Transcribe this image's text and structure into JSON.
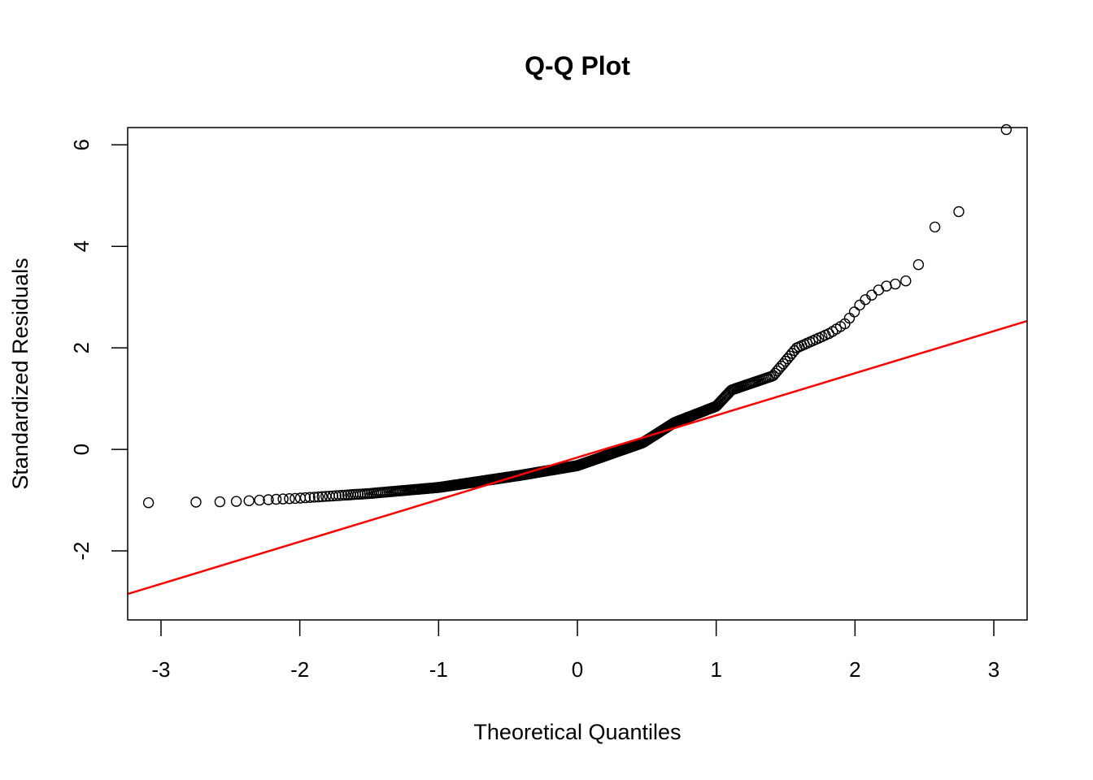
{
  "chart_data": {
    "type": "scatter",
    "title": "Q-Q Plot",
    "xlabel": "Theoretical Quantiles",
    "ylabel": "Standardized Residuals",
    "xlim": [
      -3.24,
      3.24
    ],
    "ylim": [
      -3.36,
      6.34
    ],
    "x_ticks": [
      -3,
      -2,
      -1,
      0,
      1,
      2,
      3
    ],
    "x_tick_labels": [
      "-3",
      "-2",
      "-1",
      "0",
      "1",
      "2",
      "3"
    ],
    "y_ticks": [
      -2,
      0,
      2,
      4,
      6
    ],
    "y_tick_labels": [
      "-2",
      "0",
      "2",
      "4",
      "6"
    ],
    "grid": false,
    "n_points": 500,
    "residual_curve": [
      [
        -3.09,
        -1.05
      ],
      [
        -2.5,
        -1.03
      ],
      [
        -2.0,
        -0.96
      ],
      [
        -1.5,
        -0.87
      ],
      [
        -1.0,
        -0.75
      ],
      [
        -0.41,
        -0.51
      ],
      [
        0.0,
        -0.32
      ],
      [
        0.47,
        0.13
      ],
      [
        0.7,
        0.53
      ],
      [
        1.0,
        0.85
      ],
      [
        1.11,
        1.17
      ],
      [
        1.41,
        1.45
      ],
      [
        1.58,
        2.0
      ],
      [
        1.82,
        2.29
      ],
      [
        1.93,
        2.48
      ],
      [
        2.05,
        2.9
      ],
      [
        2.2,
        3.2
      ],
      [
        2.36,
        3.3
      ],
      [
        2.46,
        3.65
      ],
      [
        2.59,
        4.47
      ],
      [
        2.76,
        4.7
      ],
      [
        3.09,
        6.3
      ]
    ],
    "reference_line": {
      "intercept": -0.16,
      "slope": 0.83,
      "color": "#ff0000"
    },
    "point_color": "#000000"
  }
}
